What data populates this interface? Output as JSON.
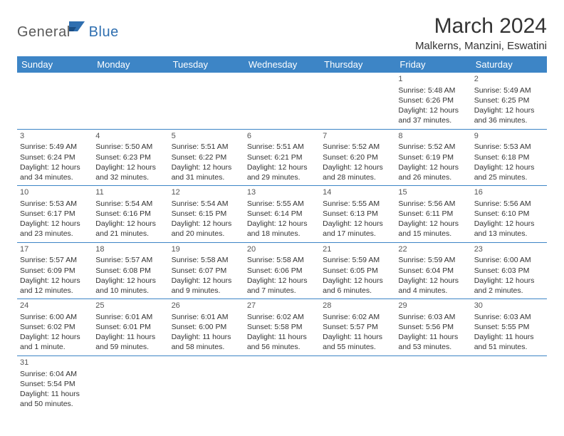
{
  "logo": {
    "text1": "General",
    "text2": "Blue"
  },
  "title": "March 2024",
  "location": "Malkerns, Manzini, Eswatini",
  "headers": [
    "Sunday",
    "Monday",
    "Tuesday",
    "Wednesday",
    "Thursday",
    "Friday",
    "Saturday"
  ],
  "colors": {
    "header_bg": "#3d85c6",
    "header_fg": "#ffffff",
    "border": "#3d85c6",
    "logo_gray": "#5a5a5a",
    "logo_blue": "#2f6fb0"
  },
  "weeks": [
    [
      null,
      null,
      null,
      null,
      null,
      {
        "n": "1",
        "sr": "5:48 AM",
        "ss": "6:26 PM",
        "dl": "12 hours and 37 minutes."
      },
      {
        "n": "2",
        "sr": "5:49 AM",
        "ss": "6:25 PM",
        "dl": "12 hours and 36 minutes."
      }
    ],
    [
      {
        "n": "3",
        "sr": "5:49 AM",
        "ss": "6:24 PM",
        "dl": "12 hours and 34 minutes."
      },
      {
        "n": "4",
        "sr": "5:50 AM",
        "ss": "6:23 PM",
        "dl": "12 hours and 32 minutes."
      },
      {
        "n": "5",
        "sr": "5:51 AM",
        "ss": "6:22 PM",
        "dl": "12 hours and 31 minutes."
      },
      {
        "n": "6",
        "sr": "5:51 AM",
        "ss": "6:21 PM",
        "dl": "12 hours and 29 minutes."
      },
      {
        "n": "7",
        "sr": "5:52 AM",
        "ss": "6:20 PM",
        "dl": "12 hours and 28 minutes."
      },
      {
        "n": "8",
        "sr": "5:52 AM",
        "ss": "6:19 PM",
        "dl": "12 hours and 26 minutes."
      },
      {
        "n": "9",
        "sr": "5:53 AM",
        "ss": "6:18 PM",
        "dl": "12 hours and 25 minutes."
      }
    ],
    [
      {
        "n": "10",
        "sr": "5:53 AM",
        "ss": "6:17 PM",
        "dl": "12 hours and 23 minutes."
      },
      {
        "n": "11",
        "sr": "5:54 AM",
        "ss": "6:16 PM",
        "dl": "12 hours and 21 minutes."
      },
      {
        "n": "12",
        "sr": "5:54 AM",
        "ss": "6:15 PM",
        "dl": "12 hours and 20 minutes."
      },
      {
        "n": "13",
        "sr": "5:55 AM",
        "ss": "6:14 PM",
        "dl": "12 hours and 18 minutes."
      },
      {
        "n": "14",
        "sr": "5:55 AM",
        "ss": "6:13 PM",
        "dl": "12 hours and 17 minutes."
      },
      {
        "n": "15",
        "sr": "5:56 AM",
        "ss": "6:11 PM",
        "dl": "12 hours and 15 minutes."
      },
      {
        "n": "16",
        "sr": "5:56 AM",
        "ss": "6:10 PM",
        "dl": "12 hours and 13 minutes."
      }
    ],
    [
      {
        "n": "17",
        "sr": "5:57 AM",
        "ss": "6:09 PM",
        "dl": "12 hours and 12 minutes."
      },
      {
        "n": "18",
        "sr": "5:57 AM",
        "ss": "6:08 PM",
        "dl": "12 hours and 10 minutes."
      },
      {
        "n": "19",
        "sr": "5:58 AM",
        "ss": "6:07 PM",
        "dl": "12 hours and 9 minutes."
      },
      {
        "n": "20",
        "sr": "5:58 AM",
        "ss": "6:06 PM",
        "dl": "12 hours and 7 minutes."
      },
      {
        "n": "21",
        "sr": "5:59 AM",
        "ss": "6:05 PM",
        "dl": "12 hours and 6 minutes."
      },
      {
        "n": "22",
        "sr": "5:59 AM",
        "ss": "6:04 PM",
        "dl": "12 hours and 4 minutes."
      },
      {
        "n": "23",
        "sr": "6:00 AM",
        "ss": "6:03 PM",
        "dl": "12 hours and 2 minutes."
      }
    ],
    [
      {
        "n": "24",
        "sr": "6:00 AM",
        "ss": "6:02 PM",
        "dl": "12 hours and 1 minute."
      },
      {
        "n": "25",
        "sr": "6:01 AM",
        "ss": "6:01 PM",
        "dl": "11 hours and 59 minutes."
      },
      {
        "n": "26",
        "sr": "6:01 AM",
        "ss": "6:00 PM",
        "dl": "11 hours and 58 minutes."
      },
      {
        "n": "27",
        "sr": "6:02 AM",
        "ss": "5:58 PM",
        "dl": "11 hours and 56 minutes."
      },
      {
        "n": "28",
        "sr": "6:02 AM",
        "ss": "5:57 PM",
        "dl": "11 hours and 55 minutes."
      },
      {
        "n": "29",
        "sr": "6:03 AM",
        "ss": "5:56 PM",
        "dl": "11 hours and 53 minutes."
      },
      {
        "n": "30",
        "sr": "6:03 AM",
        "ss": "5:55 PM",
        "dl": "11 hours and 51 minutes."
      }
    ],
    [
      {
        "n": "31",
        "sr": "6:04 AM",
        "ss": "5:54 PM",
        "dl": "11 hours and 50 minutes."
      },
      null,
      null,
      null,
      null,
      null,
      null
    ]
  ],
  "labels": {
    "sunrise": "Sunrise:",
    "sunset": "Sunset:",
    "daylight": "Daylight:"
  }
}
